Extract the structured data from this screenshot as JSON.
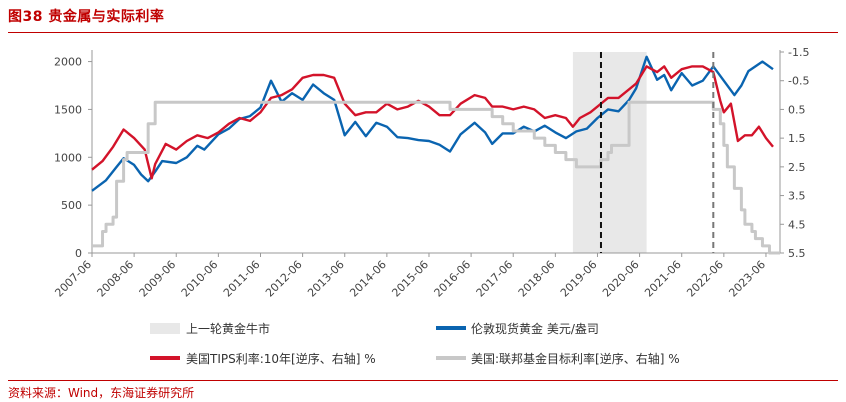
{
  "title": "图38  贵金属与实际利率",
  "source": "资料来源：Wind，东海证券研究所",
  "colors": {
    "gold": "#0a64b0",
    "tips": "#d3132a",
    "fed": "#c8c8c8",
    "shade": "#e8e8e8",
    "accent": "#c00000"
  },
  "chart_data": {
    "type": "line",
    "x_ticks": [
      "2007-06",
      "2008-06",
      "2009-06",
      "2010-06",
      "2011-06",
      "2012-06",
      "2013-06",
      "2014-06",
      "2015-06",
      "2016-06",
      "2017-06",
      "2018-06",
      "2019-06",
      "2020-06",
      "2021-06",
      "2022-06",
      "2023-06"
    ],
    "left_axis": {
      "ticks": [
        0,
        500,
        1000,
        1500,
        2000
      ],
      "range": [
        0,
        2100
      ]
    },
    "right_axis": {
      "ticks": [
        -1.5,
        -0.5,
        0.5,
        1.5,
        2.5,
        3.5,
        4.5,
        5.5
      ],
      "range": [
        -1.5,
        5.5
      ],
      "reversed": true
    },
    "shaded_period": {
      "label": "上一轮黄金牛市",
      "start": "2018-11",
      "end": "2020-08"
    },
    "vlines": [
      {
        "at": "2019-07",
        "style": "dashed-black"
      },
      {
        "at": "2022-03",
        "style": "dashed-gray"
      }
    ],
    "series": [
      {
        "name": "伦敦现货黄金 美元/盎司",
        "axis": "left",
        "color": "#0a64b0",
        "points": [
          [
            "2007-06",
            650
          ],
          [
            "2007-10",
            760
          ],
          [
            "2008-01",
            900
          ],
          [
            "2008-03",
            990
          ],
          [
            "2008-06",
            920
          ],
          [
            "2008-08",
            820
          ],
          [
            "2008-10",
            750
          ],
          [
            "2008-12",
            850
          ],
          [
            "2009-02",
            960
          ],
          [
            "2009-06",
            940
          ],
          [
            "2009-09",
            1000
          ],
          [
            "2009-12",
            1120
          ],
          [
            "2010-02",
            1080
          ],
          [
            "2010-06",
            1240
          ],
          [
            "2010-09",
            1300
          ],
          [
            "2010-12",
            1400
          ],
          [
            "2011-03",
            1430
          ],
          [
            "2011-06",
            1520
          ],
          [
            "2011-09",
            1800
          ],
          [
            "2011-12",
            1580
          ],
          [
            "2012-03",
            1670
          ],
          [
            "2012-06",
            1600
          ],
          [
            "2012-09",
            1760
          ],
          [
            "2012-12",
            1670
          ],
          [
            "2013-03",
            1600
          ],
          [
            "2013-06",
            1230
          ],
          [
            "2013-09",
            1370
          ],
          [
            "2013-12",
            1220
          ],
          [
            "2014-03",
            1360
          ],
          [
            "2014-06",
            1320
          ],
          [
            "2014-09",
            1210
          ],
          [
            "2014-12",
            1200
          ],
          [
            "2015-03",
            1180
          ],
          [
            "2015-06",
            1170
          ],
          [
            "2015-09",
            1130
          ],
          [
            "2015-12",
            1060
          ],
          [
            "2016-03",
            1240
          ],
          [
            "2016-07",
            1360
          ],
          [
            "2016-10",
            1260
          ],
          [
            "2016-12",
            1140
          ],
          [
            "2017-03",
            1250
          ],
          [
            "2017-06",
            1250
          ],
          [
            "2017-09",
            1320
          ],
          [
            "2017-12",
            1270
          ],
          [
            "2018-03",
            1330
          ],
          [
            "2018-06",
            1260
          ],
          [
            "2018-09",
            1200
          ],
          [
            "2018-12",
            1270
          ],
          [
            "2019-03",
            1300
          ],
          [
            "2019-06",
            1410
          ],
          [
            "2019-09",
            1500
          ],
          [
            "2019-12",
            1480
          ],
          [
            "2020-03",
            1600
          ],
          [
            "2020-05",
            1720
          ],
          [
            "2020-08",
            2050
          ],
          [
            "2020-11",
            1810
          ],
          [
            "2021-01",
            1860
          ],
          [
            "2021-03",
            1700
          ],
          [
            "2021-06",
            1880
          ],
          [
            "2021-09",
            1750
          ],
          [
            "2021-12",
            1800
          ],
          [
            "2022-03",
            1950
          ],
          [
            "2022-06",
            1800
          ],
          [
            "2022-09",
            1650
          ],
          [
            "2022-11",
            1750
          ],
          [
            "2023-01",
            1900
          ],
          [
            "2023-03",
            1950
          ],
          [
            "2023-05",
            2000
          ],
          [
            "2023-08",
            1920
          ]
        ]
      },
      {
        "name": "美国TIPS利率:10年[逆序、右轴] %",
        "axis": "right",
        "color": "#d3132a",
        "points": [
          [
            "2007-06",
            2.6
          ],
          [
            "2007-09",
            2.3
          ],
          [
            "2007-12",
            1.8
          ],
          [
            "2008-03",
            1.2
          ],
          [
            "2008-06",
            1.5
          ],
          [
            "2008-09",
            1.9
          ],
          [
            "2008-11",
            2.9
          ],
          [
            "2008-12",
            2.4
          ],
          [
            "2009-03",
            1.7
          ],
          [
            "2009-06",
            1.9
          ],
          [
            "2009-09",
            1.6
          ],
          [
            "2009-12",
            1.4
          ],
          [
            "2010-03",
            1.5
          ],
          [
            "2010-06",
            1.3
          ],
          [
            "2010-09",
            1.0
          ],
          [
            "2010-12",
            0.8
          ],
          [
            "2011-03",
            0.9
          ],
          [
            "2011-06",
            0.6
          ],
          [
            "2011-09",
            0.1
          ],
          [
            "2011-12",
            0.0
          ],
          [
            "2012-03",
            -0.2
          ],
          [
            "2012-06",
            -0.6
          ],
          [
            "2012-09",
            -0.7
          ],
          [
            "2012-12",
            -0.7
          ],
          [
            "2013-03",
            -0.6
          ],
          [
            "2013-06",
            0.3
          ],
          [
            "2013-09",
            0.7
          ],
          [
            "2013-12",
            0.6
          ],
          [
            "2014-03",
            0.6
          ],
          [
            "2014-06",
            0.3
          ],
          [
            "2014-09",
            0.5
          ],
          [
            "2014-12",
            0.4
          ],
          [
            "2015-03",
            0.2
          ],
          [
            "2015-06",
            0.4
          ],
          [
            "2015-09",
            0.7
          ],
          [
            "2015-12",
            0.7
          ],
          [
            "2016-03",
            0.3
          ],
          [
            "2016-07",
            0.0
          ],
          [
            "2016-10",
            0.1
          ],
          [
            "2016-12",
            0.4
          ],
          [
            "2017-03",
            0.4
          ],
          [
            "2017-06",
            0.5
          ],
          [
            "2017-09",
            0.4
          ],
          [
            "2017-12",
            0.5
          ],
          [
            "2018-03",
            0.8
          ],
          [
            "2018-06",
            0.7
          ],
          [
            "2018-09",
            0.8
          ],
          [
            "2018-11",
            1.1
          ],
          [
            "2019-01",
            0.8
          ],
          [
            "2019-04",
            0.6
          ],
          [
            "2019-07",
            0.3
          ],
          [
            "2019-09",
            0.1
          ],
          [
            "2019-12",
            0.1
          ],
          [
            "2020-03",
            -0.2
          ],
          [
            "2020-05",
            -0.4
          ],
          [
            "2020-08",
            -1.0
          ],
          [
            "2020-11",
            -0.8
          ],
          [
            "2021-01",
            -1.0
          ],
          [
            "2021-03",
            -0.6
          ],
          [
            "2021-06",
            -0.9
          ],
          [
            "2021-09",
            -1.0
          ],
          [
            "2021-12",
            -1.0
          ],
          [
            "2022-03",
            -0.8
          ],
          [
            "2022-05",
            0.2
          ],
          [
            "2022-06",
            0.6
          ],
          [
            "2022-08",
            0.3
          ],
          [
            "2022-10",
            1.6
          ],
          [
            "2022-12",
            1.4
          ],
          [
            "2023-02",
            1.4
          ],
          [
            "2023-04",
            1.1
          ],
          [
            "2023-06",
            1.5
          ],
          [
            "2023-08",
            1.8
          ]
        ]
      },
      {
        "name": "美国:联邦基金目标利率[逆序、右轴] %",
        "axis": "right",
        "color": "#c8c8c8",
        "points": [
          [
            "2007-06",
            5.25
          ],
          [
            "2007-09",
            4.75
          ],
          [
            "2007-10",
            4.5
          ],
          [
            "2007-12",
            4.25
          ],
          [
            "2008-01",
            3.0
          ],
          [
            "2008-03",
            2.25
          ],
          [
            "2008-04",
            2.0
          ],
          [
            "2008-10",
            1.0
          ],
          [
            "2008-12",
            0.25
          ],
          [
            "2015-12",
            0.5
          ],
          [
            "2016-12",
            0.75
          ],
          [
            "2017-03",
            1.0
          ],
          [
            "2017-06",
            1.25
          ],
          [
            "2017-12",
            1.5
          ],
          [
            "2018-03",
            1.75
          ],
          [
            "2018-06",
            2.0
          ],
          [
            "2018-09",
            2.25
          ],
          [
            "2018-12",
            2.5
          ],
          [
            "2019-07",
            2.25
          ],
          [
            "2019-09",
            2.0
          ],
          [
            "2019-10",
            1.75
          ],
          [
            "2020-03",
            0.25
          ],
          [
            "2022-03",
            0.5
          ],
          [
            "2022-05",
            1.0
          ],
          [
            "2022-06",
            1.75
          ],
          [
            "2022-07",
            2.5
          ],
          [
            "2022-09",
            3.25
          ],
          [
            "2022-11",
            4.0
          ],
          [
            "2022-12",
            4.5
          ],
          [
            "2023-02",
            4.75
          ],
          [
            "2023-03",
            5.0
          ],
          [
            "2023-05",
            5.25
          ],
          [
            "2023-07",
            5.5
          ]
        ]
      }
    ]
  }
}
